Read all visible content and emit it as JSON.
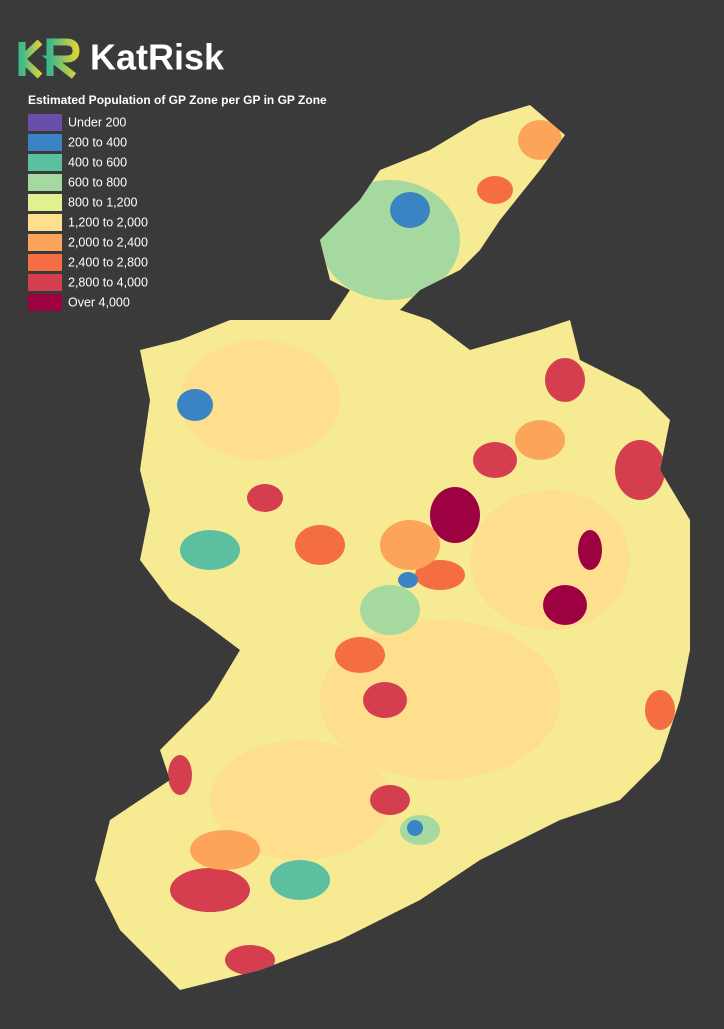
{
  "logo": {
    "text": "KatRisk"
  },
  "legend": {
    "title": "Estimated Population of GP Zone per GP in GP Zone",
    "items": [
      {
        "label": "Under 200",
        "color": "#6a4fa8"
      },
      {
        "label": "200 to 400",
        "color": "#3b84c4"
      },
      {
        "label": "400 to 600",
        "color": "#5cbf9f"
      },
      {
        "label": "600 to 800",
        "color": "#a6d9a0"
      },
      {
        "label": "800 to 1,200",
        "color": "#e3f08f"
      },
      {
        "label": "1,200 to 2,000",
        "color": "#fddf8e"
      },
      {
        "label": "2,000 to 2,400",
        "color": "#fca55a"
      },
      {
        "label": "2,400 to 2,800",
        "color": "#f46d43"
      },
      {
        "label": "2,800 to 4,000",
        "color": "#d53e4f"
      },
      {
        "label": "Over 4,000",
        "color": "#9e0142"
      }
    ]
  }
}
